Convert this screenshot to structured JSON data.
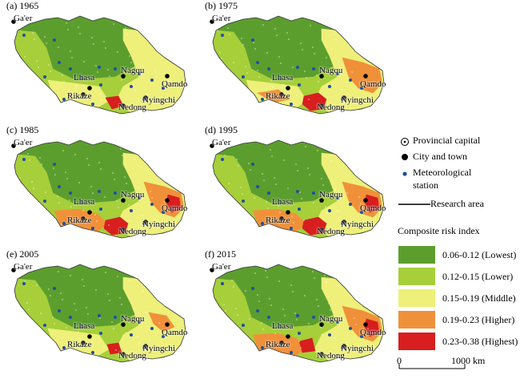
{
  "panels": [
    {
      "label": "(a) 1965",
      "variant": 0
    },
    {
      "label": "(b) 1975",
      "variant": 1
    },
    {
      "label": "(c) 1985",
      "variant": 2
    },
    {
      "label": "(d) 1995",
      "variant": 3
    },
    {
      "label": "(e) 2005",
      "variant": 4
    },
    {
      "label": "(f) 2015",
      "variant": 5
    }
  ],
  "cities": {
    "gaer": "Ga'er",
    "lhasa": "Lhasa",
    "nagqu": "Nagqu",
    "qamdo": "Qamdo",
    "rikaze": "Rikaze",
    "nyingchi": "Nyingchi",
    "nedong": "Nedong"
  },
  "legend": {
    "provincial_capital": "Provincial capital",
    "city_town": "City and town",
    "met_station_line1": "Meteorological",
    "met_station_line2": "station",
    "research_area": "Research area",
    "index_title": "Composite risk index",
    "classes": [
      {
        "label": "0.06-0.12 (Lowest)",
        "color": "#5c9e2e"
      },
      {
        "label": "0.12-0.15 (Lower)",
        "color": "#a6cf3a"
      },
      {
        "label": "0.15-0.19 (Middle)",
        "color": "#eef07a"
      },
      {
        "label": "0.19-0.23 (Higher)",
        "color": "#f0913a"
      },
      {
        "label": "0.23-0.38 (Highest)",
        "color": "#d81e1e"
      }
    ],
    "scale_zero": "0",
    "scale_end": "1000 km"
  },
  "colors": {
    "station": "#1f4fa0",
    "city": "#000000",
    "outline": "#333333"
  }
}
